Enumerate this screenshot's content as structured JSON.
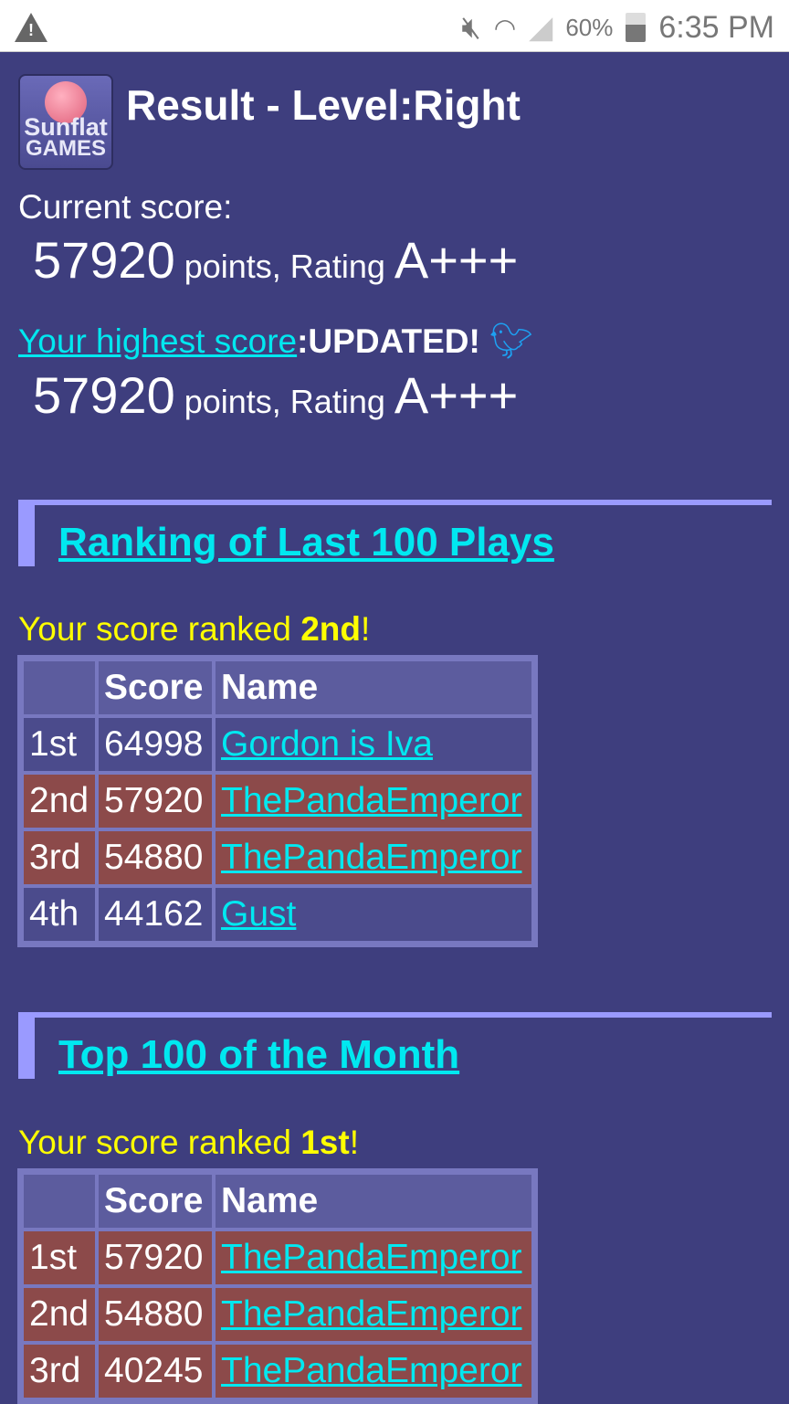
{
  "status_bar": {
    "battery": "60%",
    "time": "6:35 PM",
    "icons": [
      "warning-icon",
      "mute-icon",
      "wifi-icon",
      "signal-icon",
      "battery-icon"
    ]
  },
  "header": {
    "logo_text": [
      "Sunflat",
      "GAMES"
    ],
    "title": "Result - Level:Right"
  },
  "current": {
    "label": "Current score:",
    "score": "57920",
    "points": " points, Rating ",
    "rating": "A+++"
  },
  "highest": {
    "link": "Your highest score",
    "status": ":UPDATED!",
    "score": "57920",
    "points": " points, Rating ",
    "rating": "A+++"
  },
  "sections": [
    {
      "title": "Ranking of Last 100 Plays",
      "rank_prefix": "Your score ranked ",
      "rank": "2nd",
      "rank_suffix": "!",
      "headers": [
        "",
        "Score",
        "Name"
      ],
      "rows": [
        {
          "rank": "1st",
          "score": "64998",
          "name": "Gordon is Iva",
          "highlight": false
        },
        {
          "rank": "2nd",
          "score": "57920",
          "name": "ThePandaEmperor",
          "highlight": true
        },
        {
          "rank": "3rd",
          "score": "54880",
          "name": "ThePandaEmperor",
          "highlight": true
        },
        {
          "rank": "4th",
          "score": "44162",
          "name": "Gust",
          "highlight": false
        }
      ]
    },
    {
      "title": "Top 100 of the Month",
      "rank_prefix": "Your score ranked ",
      "rank": "1st",
      "rank_suffix": "!",
      "headers": [
        "",
        "Score",
        "Name"
      ],
      "rows": [
        {
          "rank": "1st",
          "score": "57920",
          "name": "ThePandaEmperor",
          "highlight": true
        },
        {
          "rank": "2nd",
          "score": "54880",
          "name": "ThePandaEmperor",
          "highlight": true
        },
        {
          "rank": "3rd",
          "score": "40245",
          "name": "ThePandaEmperor",
          "highlight": true
        }
      ]
    }
  ],
  "colors": {
    "background": "#3e3e7e",
    "highlight_row": "#8c4a4a",
    "link": "#00e8f0",
    "rank_text": "#ffff00"
  }
}
